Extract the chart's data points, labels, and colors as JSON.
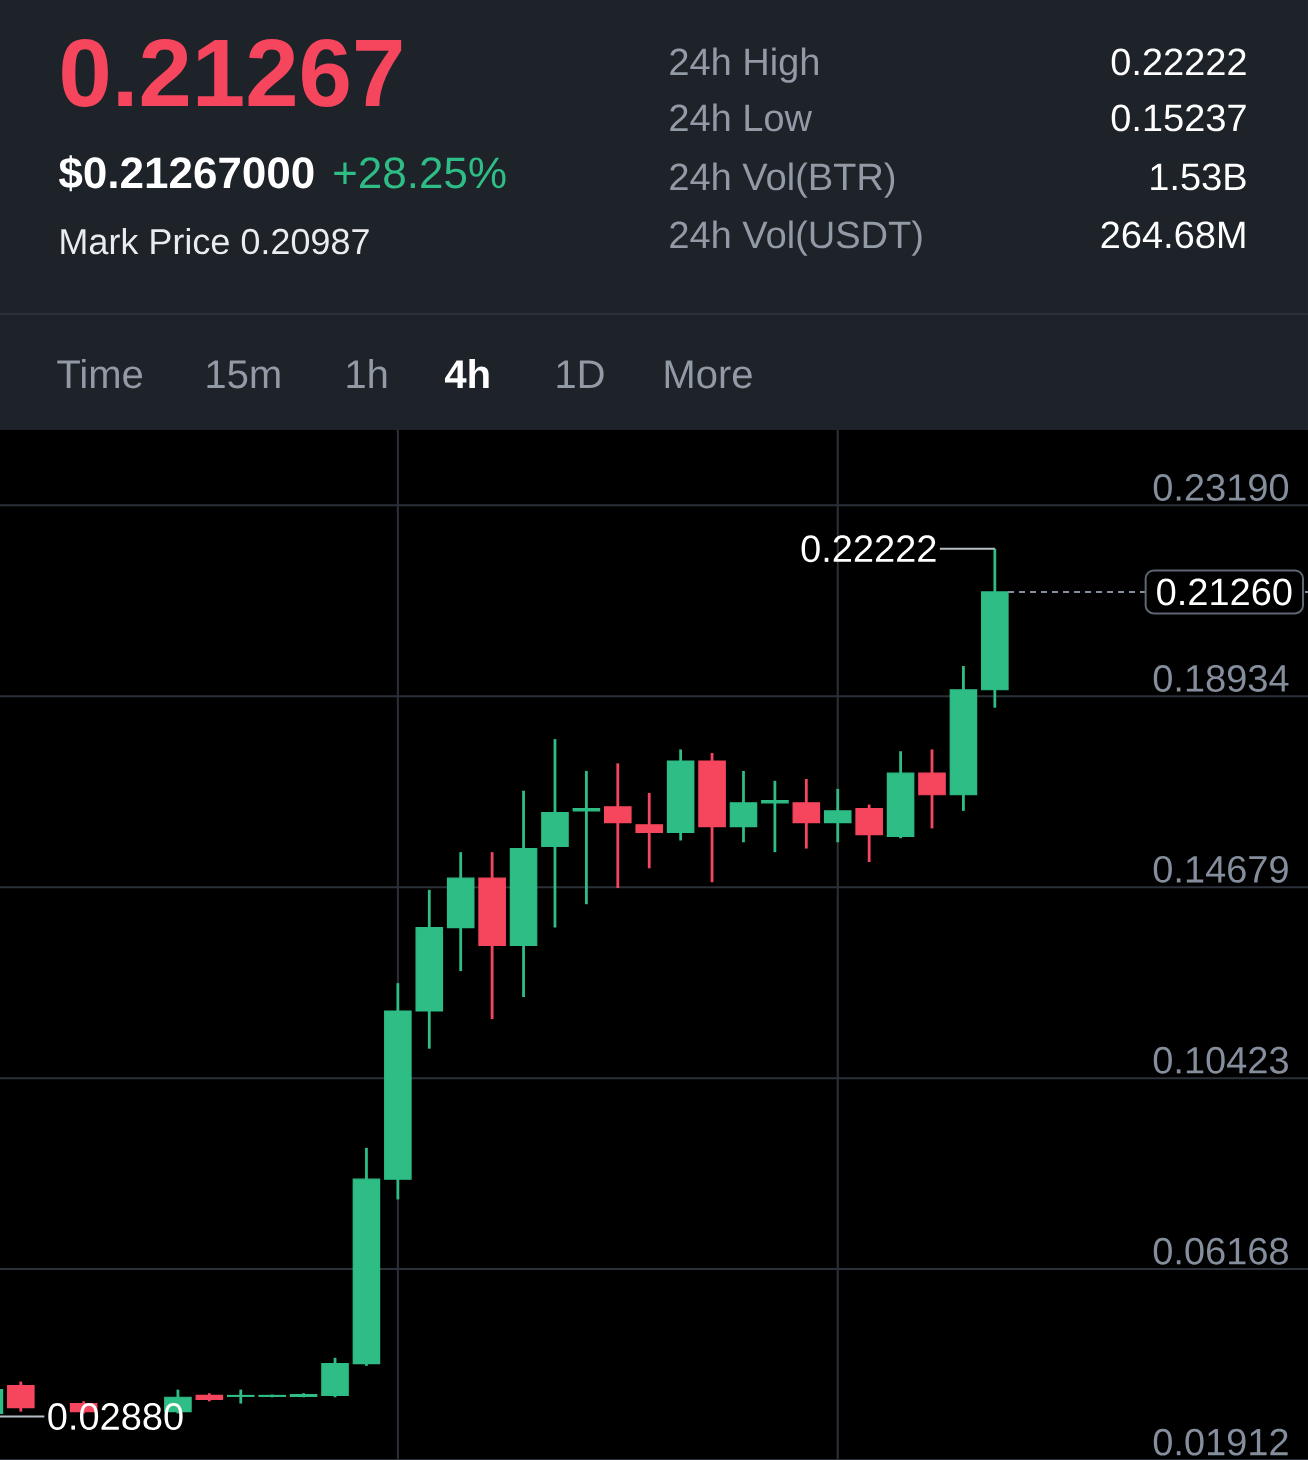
{
  "chart_data": {
    "type": "candlestick",
    "categories": [
      null,
      null,
      null,
      null,
      null,
      null,
      null,
      null,
      null,
      null,
      null,
      null,
      null,
      null,
      null,
      null,
      null,
      null,
      null,
      null,
      null,
      null,
      null,
      null,
      null,
      null,
      null,
      null,
      null,
      null,
      null,
      null,
      null
    ],
    "ohlc": [
      [
        0.0295,
        0.035,
        0.0288,
        0.0348
      ],
      [
        0.0357,
        0.0366,
        0.0299,
        0.0308
      ],
      null,
      [
        0.0317,
        0.0322,
        0.0295,
        0.0299
      ],
      null,
      null,
      [
        0.0299,
        0.0348,
        0.0295,
        0.0331
      ],
      [
        0.0335,
        0.034,
        0.0322,
        0.0326
      ],
      [
        0.0333,
        0.0348,
        0.0317,
        0.0335
      ],
      [
        0.0333,
        0.0337,
        0.0331,
        0.0335
      ],
      [
        0.0333,
        0.034,
        0.0331,
        0.0337
      ],
      [
        0.0335,
        0.0419,
        0.0331,
        0.0406
      ],
      [
        0.0406,
        0.0887,
        0.0401,
        0.0817
      ],
      [
        0.0817,
        0.1254,
        0.0772,
        0.1192
      ],
      [
        0.1192,
        0.1462,
        0.1108,
        0.1378
      ],
      [
        0.1378,
        0.1546,
        0.1281,
        0.1488
      ],
      [
        0.1488,
        0.1546,
        0.1174,
        0.1338
      ],
      [
        0.1338,
        0.1683,
        0.1223,
        0.1554
      ],
      [
        0.1559,
        0.1798,
        0.1378,
        0.1634
      ],
      [
        0.1638,
        0.1727,
        0.143,
        0.1643
      ],
      [
        0.1647,
        0.1744,
        0.1466,
        0.1612
      ],
      [
        0.1607,
        0.1678,
        0.151,
        0.159
      ],
      [
        0.159,
        0.1775,
        0.1572,
        0.1749
      ],
      [
        0.1749,
        0.1767,
        0.1479,
        0.1603
      ],
      [
        0.1603,
        0.1727,
        0.1568,
        0.1656
      ],
      [
        0.1656,
        0.1705,
        0.1546,
        0.1661
      ],
      [
        0.1656,
        0.1709,
        0.1554,
        0.1612
      ],
      [
        0.1612,
        0.1687,
        0.1568,
        0.1638
      ],
      [
        0.1643,
        0.1652,
        0.1524,
        0.1585
      ],
      [
        0.1581,
        0.1771,
        0.1577,
        0.1722
      ],
      [
        0.1722,
        0.1775,
        0.1599,
        0.1674
      ],
      [
        0.1674,
        0.1961,
        0.1638,
        0.1908
      ],
      [
        0.1908,
        0.22222,
        0.1868,
        0.2126
      ]
    ],
    "colors": [
      "#2ebd85",
      "#f6465d",
      null,
      "#f6465d",
      null,
      null,
      "#2ebd85",
      "#f6465d",
      "#2ebd85",
      "#2ebd85",
      "#2ebd85",
      "#2ebd85",
      "#2ebd85",
      "#2ebd85",
      "#2ebd85",
      "#2ebd85",
      "#f6465d",
      "#2ebd85",
      "#2ebd85",
      "#2ebd85",
      "#f6465d",
      "#f6465d",
      "#2ebd85",
      "#f6465d",
      "#2ebd85",
      "#2ebd85",
      "#f6465d",
      "#2ebd85",
      "#f6465d",
      "#2ebd85",
      "#f6465d",
      "#2ebd85",
      "#2ebd85"
    ],
    "ylim": [
      0.01912,
      0.2487
    ],
    "yticks": [
      {
        "value": 0.2319,
        "label": "0.23190"
      },
      0.18934,
      0.14679,
      0.10423,
      0.06168,
      0.01912
    ],
    "grid": true,
    "ref_lines": [
      {
        "axis": "y",
        "value": 0.2126,
        "label": "0.21260",
        "line_style": "dashed",
        "color": "#848e9c"
      }
    ],
    "annotations": [
      "0.21267",
      "$0.21267000",
      "+28.25%",
      "Mark Price 0.20987",
      "24h High",
      "0.22222",
      "24h Low",
      "0.15237",
      "24h Vol(BTR)",
      "1.53B",
      "24h Vol(USDT)",
      "264.68M",
      "Time",
      "15m",
      "1h",
      "4h",
      "1D",
      "More",
      "0.22222",
      "0.02880"
    ]
  }
}
